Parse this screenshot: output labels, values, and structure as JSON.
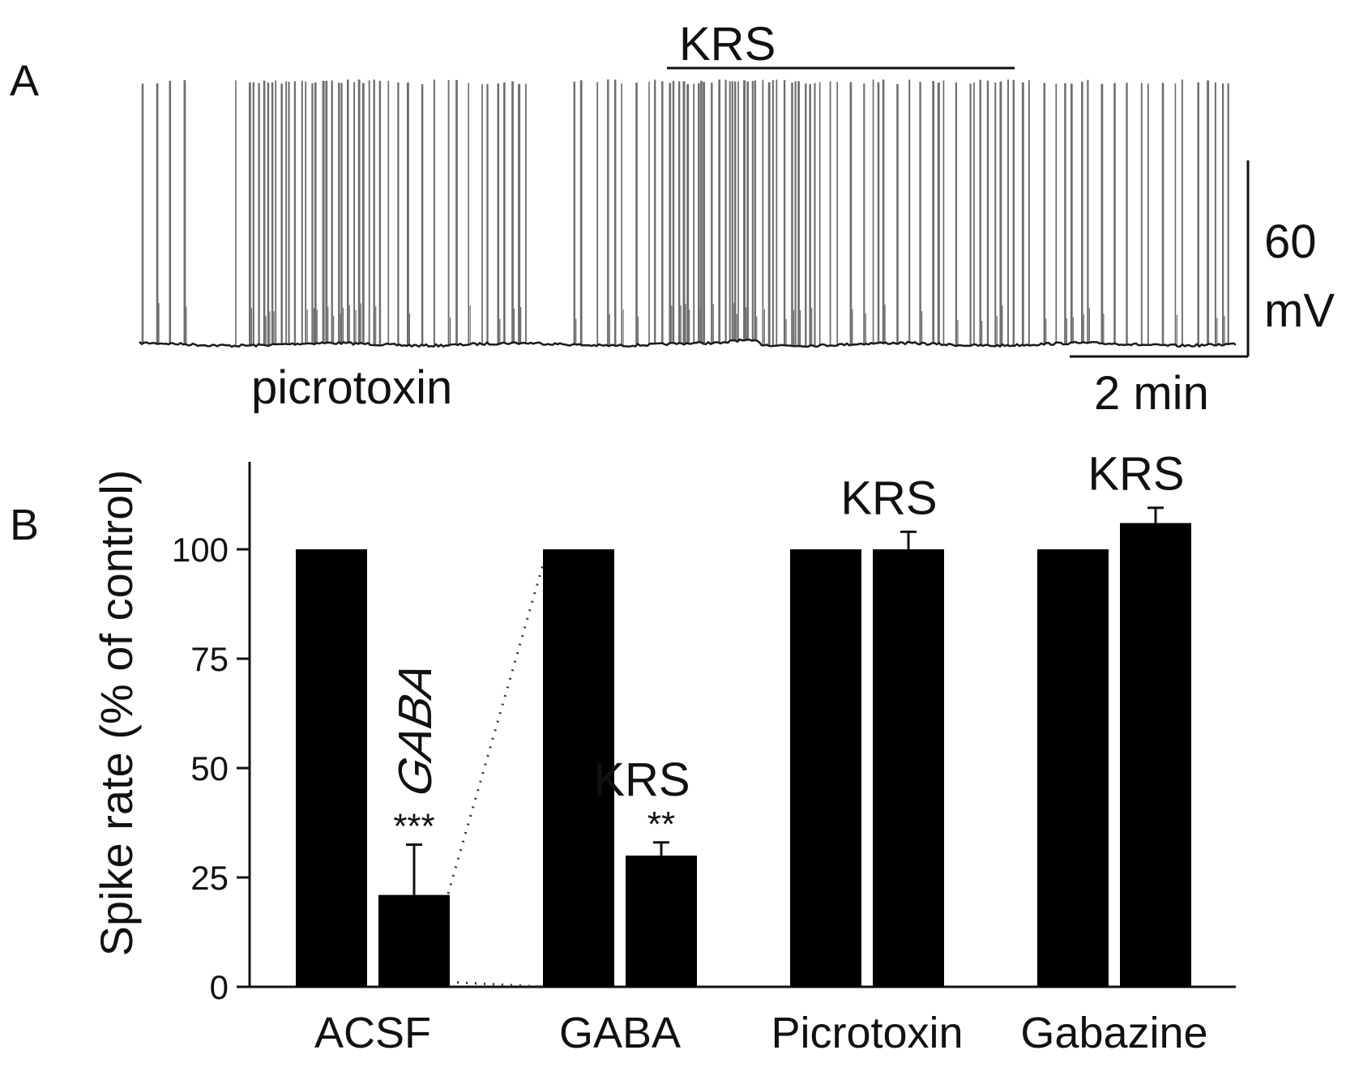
{
  "panel_a": {
    "label": "A",
    "trace_color": "#6e6e6e",
    "baseline_color": "#1a1a1a",
    "drug_label": "picrotoxin",
    "application_bar_label": "KRS",
    "scalebar_voltage_value": "60",
    "scalebar_voltage_unit": "mV",
    "scalebar_time_label": "2 min"
  },
  "panel_b": {
    "label": "B",
    "gaba_annotation": "GABA",
    "chart_data": {
      "type": "bar",
      "ylabel": "Spike rate (% of control)",
      "xlabel": "",
      "ylim": [
        0,
        120
      ],
      "yticks": [
        0,
        25,
        50,
        75,
        100
      ],
      "grid": false,
      "bar_color": "#000000",
      "groups": [
        {
          "category": "ACSF",
          "bars": [
            {
              "value": 100,
              "error": null,
              "label": "",
              "significance": ""
            },
            {
              "value": 21,
              "error": 11.5,
              "label": "",
              "significance": "***"
            }
          ]
        },
        {
          "category": "GABA",
          "bars": [
            {
              "value": 100,
              "error": null,
              "label": "",
              "significance": ""
            },
            {
              "value": 30,
              "error": 3,
              "label": "KRS",
              "significance": "**"
            }
          ]
        },
        {
          "category": "Picrotoxin",
          "bars": [
            {
              "value": 100,
              "error": null,
              "label": "",
              "significance": ""
            },
            {
              "value": 100,
              "error": 4,
              "label": "KRS",
              "significance": ""
            }
          ]
        },
        {
          "category": "Gabazine",
          "bars": [
            {
              "value": 100,
              "error": null,
              "label": "",
              "significance": ""
            },
            {
              "value": 106,
              "error": 3.5,
              "label": "KRS",
              "significance": ""
            }
          ]
        }
      ]
    }
  }
}
